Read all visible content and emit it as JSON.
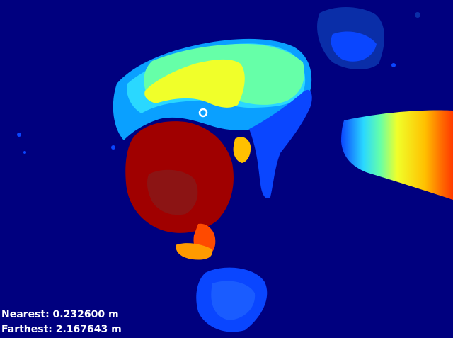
{
  "readout": {
    "nearest": "Nearest: 0.232600 m",
    "farthest": "Farthest: 2.167643 m"
  },
  "colormap": {
    "background": "#00007f",
    "dark_blue": "#0000c8",
    "blue": "#0a46ff",
    "light_blue": "#0aa0ff",
    "cyan": "#2ad8ff",
    "mint": "#66ffa8",
    "yellow": "#f0ff2a",
    "orange": "#ff9a00",
    "red_orange": "#ff4a00",
    "dark_red": "#a00000",
    "marker": "#ffffff"
  }
}
